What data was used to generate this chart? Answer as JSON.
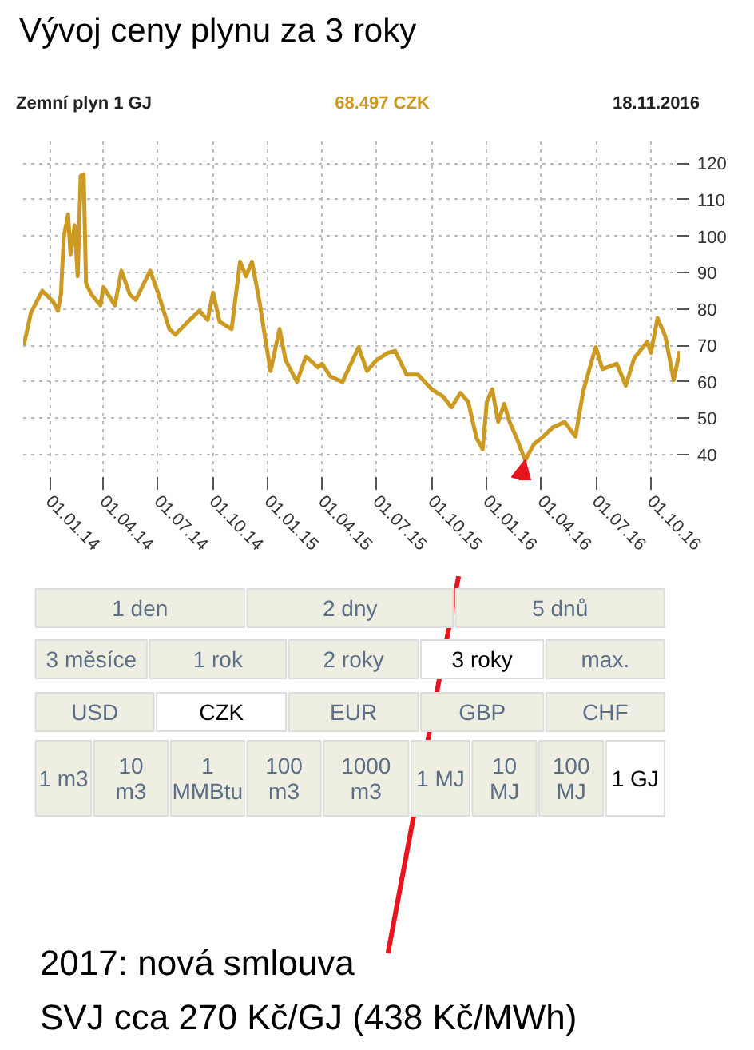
{
  "chart_data": {
    "type": "line",
    "title": "Vývoj ceny plynu za 3 roky",
    "subtitle": "Zemní plyn 1 GJ",
    "x": [
      "2013-11-19",
      "2013-12-01",
      "2013-12-20",
      "2014-01-07",
      "2014-01-15",
      "2014-01-20",
      "2014-01-25",
      "2014-02-01",
      "2014-02-05",
      "2014-02-12",
      "2014-02-17",
      "2014-02-22",
      "2014-02-27",
      "2014-03-03",
      "2014-03-12",
      "2014-03-27",
      "2014-04-01",
      "2014-04-20",
      "2014-05-01",
      "2014-05-15",
      "2014-05-25",
      "2014-06-18",
      "2014-07-01",
      "2014-07-20",
      "2014-07-30",
      "2014-08-20",
      "2014-09-08",
      "2014-09-22",
      "2014-10-01",
      "2014-10-12",
      "2014-11-01",
      "2014-11-15",
      "2014-11-25",
      "2014-12-05",
      "2014-12-18",
      "2014-12-26",
      "2015-01-05",
      "2015-01-20",
      "2015-01-30",
      "2015-02-18",
      "2015-03-05",
      "2015-03-25",
      "2015-04-01",
      "2015-04-15",
      "2015-05-05",
      "2015-06-01",
      "2015-06-15",
      "2015-07-01",
      "2015-07-20",
      "2015-08-01",
      "2015-08-20",
      "2015-09-08",
      "2015-10-01",
      "2015-10-20",
      "2015-11-03",
      "2015-11-18",
      "2015-12-01",
      "2015-12-15",
      "2015-12-25",
      "2016-01-01",
      "2016-01-10",
      "2016-01-20",
      "2016-01-30",
      "2016-02-08",
      "2016-02-20",
      "2016-03-05",
      "2016-03-20",
      "2016-04-01",
      "2016-04-20",
      "2016-05-10",
      "2016-05-28",
      "2016-06-10",
      "2016-06-28",
      "2016-07-01",
      "2016-07-12",
      "2016-08-05",
      "2016-08-20",
      "2016-09-03",
      "2016-09-25",
      "2016-10-01",
      "2016-10-12",
      "2016-10-25",
      "2016-11-08",
      "2016-11-18"
    ],
    "values": [
      70,
      79,
      85,
      82,
      79.5,
      84,
      100,
      106,
      95,
      103,
      89,
      116.5,
      117,
      87,
      84,
      81,
      86,
      81,
      90.5,
      84,
      82.5,
      90.5,
      84.5,
      74.5,
      73,
      76.5,
      79.5,
      77,
      84.5,
      76.5,
      74.5,
      93,
      89,
      93,
      81.5,
      73,
      63,
      74.5,
      66,
      60,
      67,
      64,
      65,
      61.5,
      60,
      69.5,
      63,
      66,
      68,
      68.5,
      62,
      62,
      58,
      56,
      53,
      57,
      54.5,
      44.5,
      41.5,
      54.5,
      58,
      49,
      54,
      49,
      44.5,
      38.5,
      43,
      44.5,
      47.5,
      49,
      45,
      57.5,
      68,
      69.5,
      63.5,
      65,
      59,
      66.5,
      71,
      68,
      77.5,
      72.5,
      60.5,
      68.5
    ],
    "color": "#cc9a22",
    "xlim": [
      "2013-11-18",
      "2016-11-18"
    ],
    "xticks": [
      {
        "value": "2014-01-01",
        "label": "01.01.14"
      },
      {
        "value": "2014-04-01",
        "label": "01.04.14"
      },
      {
        "value": "2014-07-01",
        "label": "01.07.14"
      },
      {
        "value": "2014-10-01",
        "label": "01.10.14"
      },
      {
        "value": "2015-01-01",
        "label": "01.01.15"
      },
      {
        "value": "2015-04-01",
        "label": "01.04.15"
      },
      {
        "value": "2015-07-01",
        "label": "01.07.15"
      },
      {
        "value": "2015-10-01",
        "label": "01.10.15"
      },
      {
        "value": "2016-01-01",
        "label": "01.01.16"
      },
      {
        "value": "2016-04-01",
        "label": "01.04.16"
      },
      {
        "value": "2016-07-01",
        "label": "01.07.16"
      },
      {
        "value": "2016-10-01",
        "label": "01.10.16"
      }
    ],
    "ylim": [
      33,
      126
    ],
    "yticks": [
      40,
      50,
      60,
      70,
      80,
      90,
      100,
      110,
      120
    ],
    "grid": true,
    "line_style": "solid",
    "annotations": [
      "68.497 CZK",
      "18.11.2016",
      "1 den",
      "2 dny",
      "5 dnů",
      "3 měsíce",
      "1 rok",
      "2 roky",
      "3 roky",
      "max.",
      "USD",
      "CZK",
      "EUR",
      "GBP",
      "CHF",
      "1 m3",
      "10\nm3",
      "1\nMMBtu",
      "100\nm3",
      "1000\nm3",
      "1 MJ",
      "10\nMJ",
      "100\nMJ",
      "1 GJ",
      "2017: nová smlouva",
      "SVJ  cca 270 Kč/GJ (438 Kč/MWh)"
    ]
  }
}
